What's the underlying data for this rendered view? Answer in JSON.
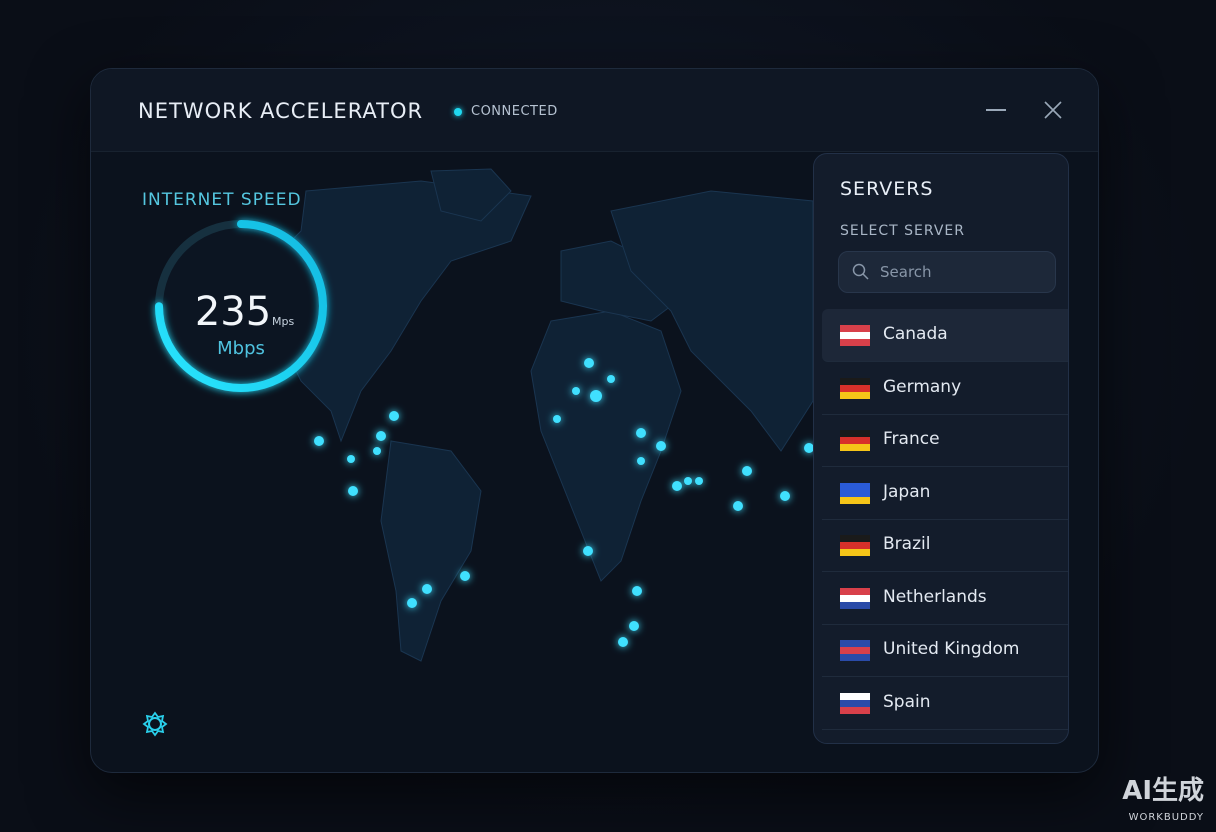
{
  "header": {
    "title": "NETWORK ACCELERATOR",
    "status": "CONNECTED"
  },
  "speed": {
    "label": "INTERNET SPEED",
    "value": "235",
    "unit_small": "Mps",
    "unit": "Mbps"
  },
  "servers": {
    "title": "SERVERS",
    "subtitle": "SELECT SERVER",
    "search_placeholder": "Search",
    "list": [
      "Canada",
      "Germany",
      "France",
      "Japan",
      "Brazil",
      "Netherlands",
      "United Kingdom",
      "Spain"
    ]
  },
  "watermark": {
    "main": "AI生成",
    "sub": "WORKBUDDY"
  }
}
